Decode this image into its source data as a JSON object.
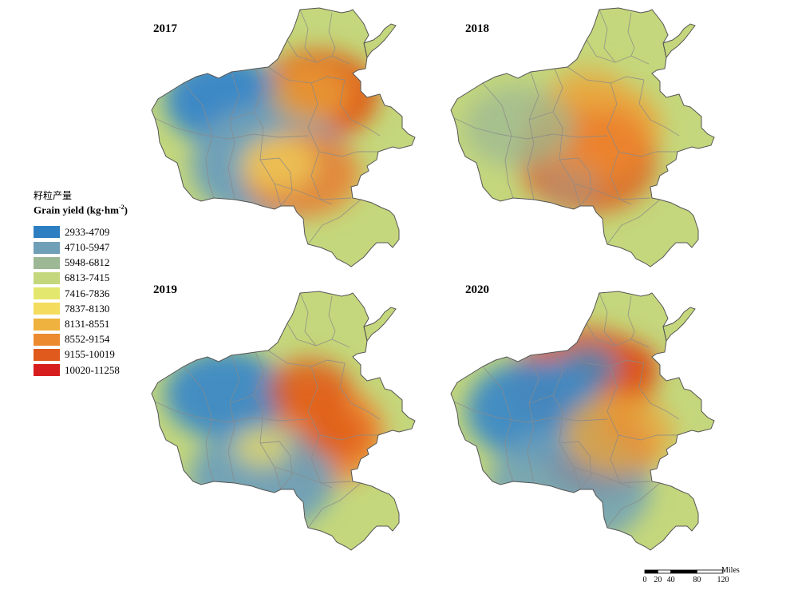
{
  "panels": [
    {
      "year": "2017",
      "blobs": [
        [
          "#de5b18",
          0.13,
          0.16,
          0.6,
          1.0
        ],
        [
          "#3d89c6",
          -0.22,
          0.14,
          0.6,
          1.0
        ],
        [
          "#6fa0b8",
          -0.05,
          -0.1,
          0.78,
          1.0
        ],
        [
          "#ec8631",
          0.07,
          -0.14,
          0.58,
          0.9
        ],
        [
          "#e9a83d",
          0.1,
          0.17,
          0.42,
          0.7
        ],
        [
          "#f1df63",
          -0.02,
          -0.1,
          0.38,
          0.6
        ]
      ]
    },
    {
      "year": "2018",
      "blobs": [
        [
          "#e9a83d",
          0.04,
          0.03,
          0.68,
          0.95
        ],
        [
          "#de5b18",
          0.02,
          -0.1,
          0.68,
          0.8
        ],
        [
          "#ec8631",
          0.05,
          -0.02,
          0.52,
          0.9
        ],
        [
          "#9cb894",
          -0.24,
          0.04,
          0.55,
          0.75
        ],
        [
          "#8eaec2",
          -0.05,
          -0.18,
          0.3,
          0.35
        ],
        [
          "#e9a83d",
          0.02,
          0.18,
          0.35,
          0.5
        ]
      ]
    },
    {
      "year": "2019",
      "blobs": [
        [
          "#ec8631",
          0.1,
          -0.05,
          0.74,
          1.0
        ],
        [
          "#3d89c6",
          -0.22,
          0.1,
          0.6,
          0.95
        ],
        [
          "#6fa0b8",
          -0.08,
          -0.22,
          0.72,
          0.95
        ],
        [
          "#de5b18",
          0.1,
          0.12,
          0.42,
          0.8
        ],
        [
          "#de5b18",
          0.2,
          -0.05,
          0.32,
          0.8
        ],
        [
          "#f1df63",
          -0.08,
          -0.1,
          0.28,
          0.7
        ]
      ]
    },
    {
      "year": "2020",
      "blobs": [
        [
          "#d8211e",
          0.14,
          0.2,
          0.38,
          0.95
        ],
        [
          "#d8211e",
          0.06,
          -0.12,
          0.55,
          0.9
        ],
        [
          "#de5b18",
          0.0,
          0.15,
          0.72,
          0.9
        ],
        [
          "#3d89c6",
          -0.18,
          0.04,
          0.68,
          0.95
        ],
        [
          "#6fa0b8",
          -0.05,
          -0.25,
          0.8,
          0.85
        ],
        [
          "#e9a83d",
          0.14,
          -0.05,
          0.55,
          0.8
        ],
        [
          "#3d89c6",
          0.02,
          0.2,
          0.3,
          0.8
        ]
      ]
    }
  ],
  "legend": {
    "title_cn": "籽粒产量",
    "title_en": "Grain yield (kg·hm",
    "title_en_sup": "-2",
    "title_en_close": ")",
    "classes": [
      {
        "label": "2933-4709",
        "color": "#2e7fc1"
      },
      {
        "label": "4710-5947",
        "color": "#6fa0b8"
      },
      {
        "label": "5948-6812",
        "color": "#9cb894"
      },
      {
        "label": "6813-7415",
        "color": "#c4d77c"
      },
      {
        "label": "7416-7836",
        "color": "#e4e76d"
      },
      {
        "label": "7837-8130",
        "color": "#f3dc5e"
      },
      {
        "label": "8131-8551",
        "color": "#efb23e"
      },
      {
        "label": "8552-9154",
        "color": "#ec8a30"
      },
      {
        "label": "9155-10019",
        "color": "#df5a1c"
      },
      {
        "label": "10020-11258",
        "color": "#d71e1e"
      }
    ]
  },
  "scalebar": {
    "unit": "Miles",
    "ticks": [
      "0",
      "20",
      "40",
      "80",
      "120"
    ],
    "tick_values": [
      0,
      20,
      40,
      80,
      120
    ]
  }
}
